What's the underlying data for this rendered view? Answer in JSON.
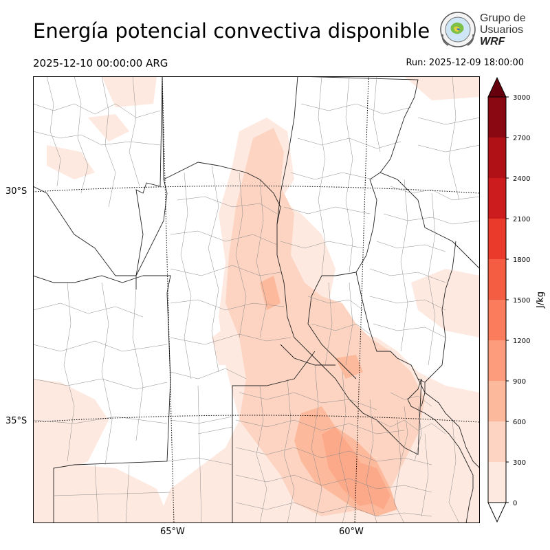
{
  "header": {
    "title": "Energía potencial convectiva disponible",
    "valid_time": "2025-12-10 00:00:00 ARG",
    "run_time": "Run: 2025-12-09 18:00:00"
  },
  "logo": {
    "line1": "Grupo de",
    "line2": "Usuarios",
    "line3": "WRF"
  },
  "map": {
    "lat_labels": [
      "30°S",
      "35°S"
    ],
    "lon_labels": [
      "65°W",
      "60°W"
    ]
  },
  "colorbar": {
    "label": "J/kg",
    "ticks": [
      "0",
      "300",
      "600",
      "900",
      "1200",
      "1500",
      "1800",
      "2100",
      "2400",
      "2700",
      "3000"
    ],
    "colors": [
      "#fee9e0",
      "#fcd4c1",
      "#fcb99c",
      "#fc9c7c",
      "#fb7c5c",
      "#f55d42",
      "#ea3a2c",
      "#cd1c1e",
      "#af1116",
      "#8a0812",
      "#67000d"
    ],
    "extend": "both"
  }
}
